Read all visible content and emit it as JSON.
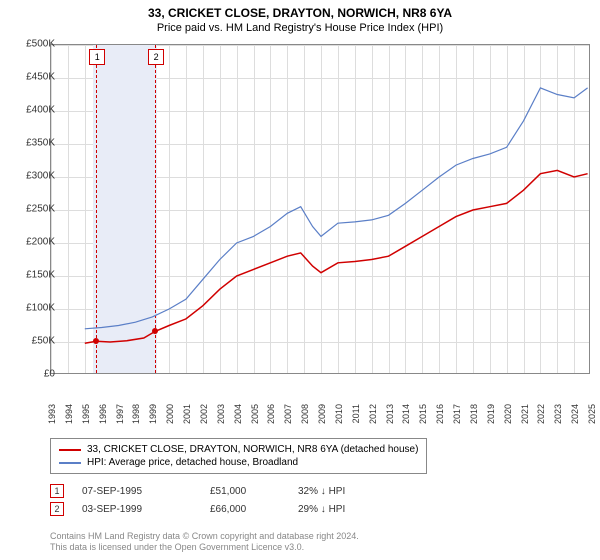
{
  "title": "33, CRICKET CLOSE, DRAYTON, NORWICH, NR8 6YA",
  "subtitle": "Price paid vs. HM Land Registry's House Price Index (HPI)",
  "chart": {
    "type": "line",
    "background_color": "#ffffff",
    "grid_color": "#dddddd",
    "axis_color": "#888888",
    "y_axis": {
      "min": 0,
      "max": 500000,
      "step": 50000,
      "format_prefix": "£",
      "format_suffix": "K",
      "ticks": [
        "£0",
        "£50K",
        "£100K",
        "£150K",
        "£200K",
        "£250K",
        "£300K",
        "£350K",
        "£400K",
        "£450K",
        "£500K"
      ]
    },
    "x_axis": {
      "min": 1993,
      "max": 2025,
      "step": 1,
      "ticks": [
        1993,
        1994,
        1995,
        1996,
        1997,
        1998,
        1999,
        2000,
        2001,
        2002,
        2003,
        2004,
        2005,
        2006,
        2007,
        2008,
        2009,
        2010,
        2011,
        2012,
        2013,
        2014,
        2015,
        2016,
        2017,
        2018,
        2019,
        2020,
        2021,
        2022,
        2023,
        2024,
        2025
      ]
    },
    "marker_band": {
      "start": 1995.5,
      "end": 1999.3,
      "color": "#e8ecf7"
    },
    "markers": [
      {
        "id": "1",
        "x": 1995.68,
        "dash_color": "#d00000"
      },
      {
        "id": "2",
        "x": 1999.17,
        "dash_color": "#d00000"
      }
    ],
    "series": [
      {
        "name": "price_paid",
        "label": "33, CRICKET CLOSE, DRAYTON, NORWICH, NR8 6YA (detached house)",
        "color": "#d00000",
        "line_width": 1.5,
        "points": [
          [
            1995.0,
            48000
          ],
          [
            1995.68,
            51000
          ],
          [
            1996.5,
            50000
          ],
          [
            1997.5,
            52000
          ],
          [
            1998.5,
            56000
          ],
          [
            1999.17,
            66000
          ],
          [
            2000.0,
            75000
          ],
          [
            2001.0,
            85000
          ],
          [
            2002.0,
            105000
          ],
          [
            2003.0,
            130000
          ],
          [
            2004.0,
            150000
          ],
          [
            2005.0,
            160000
          ],
          [
            2006.0,
            170000
          ],
          [
            2007.0,
            180000
          ],
          [
            2007.8,
            185000
          ],
          [
            2008.5,
            165000
          ],
          [
            2009.0,
            155000
          ],
          [
            2010.0,
            170000
          ],
          [
            2011.0,
            172000
          ],
          [
            2012.0,
            175000
          ],
          [
            2013.0,
            180000
          ],
          [
            2014.0,
            195000
          ],
          [
            2015.0,
            210000
          ],
          [
            2016.0,
            225000
          ],
          [
            2017.0,
            240000
          ],
          [
            2018.0,
            250000
          ],
          [
            2019.0,
            255000
          ],
          [
            2020.0,
            260000
          ],
          [
            2021.0,
            280000
          ],
          [
            2022.0,
            305000
          ],
          [
            2023.0,
            310000
          ],
          [
            2024.0,
            300000
          ],
          [
            2024.8,
            305000
          ]
        ],
        "transaction_dots": [
          {
            "x": 1995.68,
            "y": 51000,
            "color": "#d00000"
          },
          {
            "x": 1999.17,
            "y": 66000,
            "color": "#d00000"
          }
        ]
      },
      {
        "name": "hpi",
        "label": "HPI: Average price, detached house, Broadland",
        "color": "#5b7fc7",
        "line_width": 1.2,
        "points": [
          [
            1995.0,
            70000
          ],
          [
            1996.0,
            72000
          ],
          [
            1997.0,
            75000
          ],
          [
            1998.0,
            80000
          ],
          [
            1999.0,
            88000
          ],
          [
            2000.0,
            100000
          ],
          [
            2001.0,
            115000
          ],
          [
            2002.0,
            145000
          ],
          [
            2003.0,
            175000
          ],
          [
            2004.0,
            200000
          ],
          [
            2005.0,
            210000
          ],
          [
            2006.0,
            225000
          ],
          [
            2007.0,
            245000
          ],
          [
            2007.8,
            255000
          ],
          [
            2008.5,
            225000
          ],
          [
            2009.0,
            210000
          ],
          [
            2010.0,
            230000
          ],
          [
            2011.0,
            232000
          ],
          [
            2012.0,
            235000
          ],
          [
            2013.0,
            242000
          ],
          [
            2014.0,
            260000
          ],
          [
            2015.0,
            280000
          ],
          [
            2016.0,
            300000
          ],
          [
            2017.0,
            318000
          ],
          [
            2018.0,
            328000
          ],
          [
            2019.0,
            335000
          ],
          [
            2020.0,
            345000
          ],
          [
            2021.0,
            385000
          ],
          [
            2022.0,
            435000
          ],
          [
            2023.0,
            425000
          ],
          [
            2024.0,
            420000
          ],
          [
            2024.8,
            435000
          ]
        ]
      }
    ]
  },
  "legend": {
    "rows": [
      {
        "color": "#d00000",
        "label": "33, CRICKET CLOSE, DRAYTON, NORWICH, NR8 6YA (detached house)"
      },
      {
        "color": "#5b7fc7",
        "label": "HPI: Average price, detached house, Broadland"
      }
    ]
  },
  "events": [
    {
      "id": "1",
      "date": "07-SEP-1995",
      "price": "£51,000",
      "pct": "32% ↓ HPI"
    },
    {
      "id": "2",
      "date": "03-SEP-1999",
      "price": "£66,000",
      "pct": "29% ↓ HPI"
    }
  ],
  "footer": {
    "line1": "Contains HM Land Registry data © Crown copyright and database right 2024.",
    "line2": "This data is licensed under the Open Government Licence v3.0."
  }
}
